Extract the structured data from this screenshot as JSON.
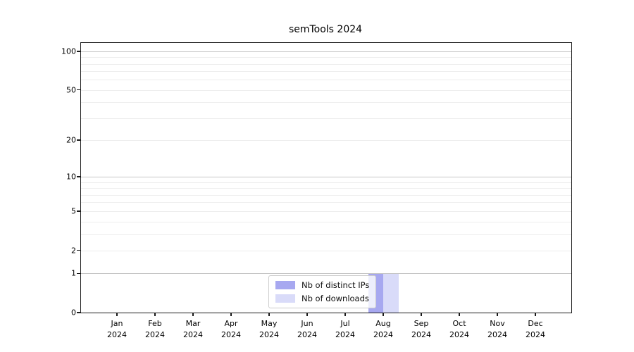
{
  "title": "semTools 2024",
  "year_label": "2024",
  "chart_data": {
    "type": "bar",
    "title": "semTools 2024",
    "categories": [
      "Jan 2024",
      "Feb 2024",
      "Mar 2024",
      "Apr 2024",
      "May 2024",
      "Jun 2024",
      "Jul 2024",
      "Aug 2024",
      "Sep 2024",
      "Oct 2024",
      "Nov 2024",
      "Dec 2024"
    ],
    "month_labels": [
      "Jan",
      "Feb",
      "Mar",
      "Apr",
      "May",
      "Jun",
      "Jul",
      "Aug",
      "Sep",
      "Oct",
      "Nov",
      "Dec"
    ],
    "series": [
      {
        "name": "Nb of distinct IPs",
        "color": "#a7a8f0",
        "values": [
          0,
          0,
          0,
          0,
          0,
          0,
          0,
          1,
          0,
          0,
          0,
          0
        ]
      },
      {
        "name": "Nb of downloads",
        "color": "#d9dbf9",
        "values": [
          0,
          0,
          0,
          0,
          0,
          0,
          0,
          1,
          0,
          0,
          0,
          0
        ]
      }
    ],
    "xlabel": "",
    "ylabel": "",
    "y_axis": {
      "scale": "log1p",
      "ylim": [
        0,
        116
      ],
      "label_ticks": [
        0,
        1,
        2,
        5,
        10,
        20,
        50,
        100
      ],
      "major_gridlines": [
        1,
        10,
        100
      ],
      "minor_gridlines": [
        2,
        3,
        4,
        5,
        6,
        7,
        8,
        9,
        20,
        30,
        40,
        50,
        60,
        70,
        80,
        90
      ]
    },
    "grid": true,
    "legend_position": "inside-bottom-center"
  }
}
